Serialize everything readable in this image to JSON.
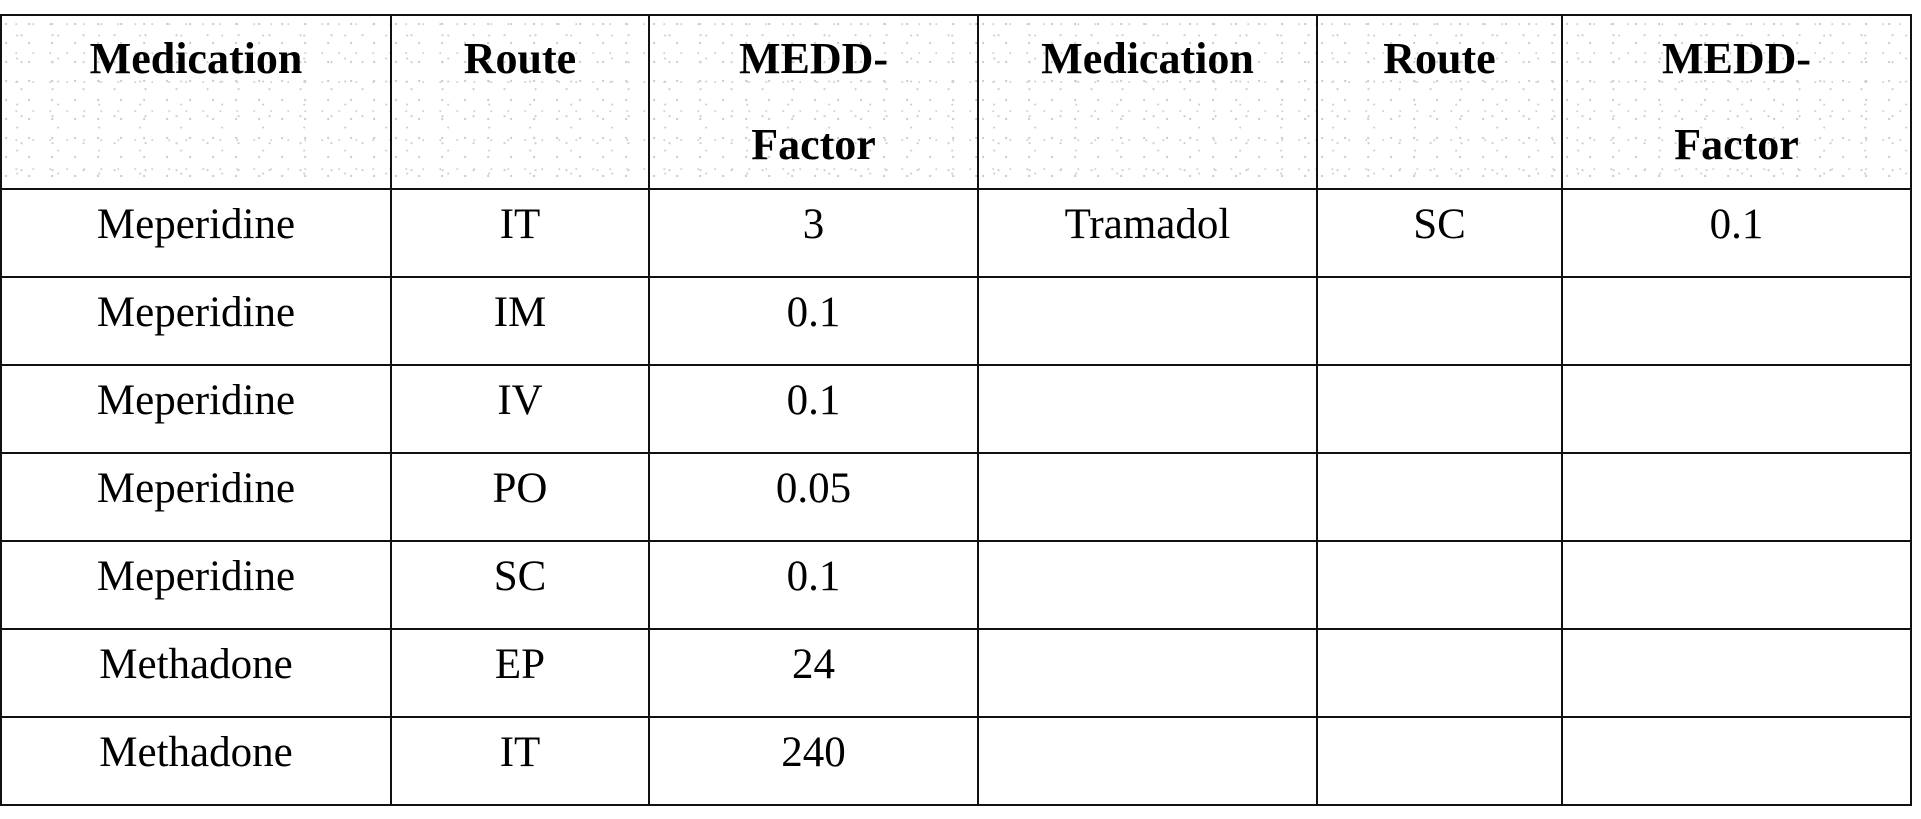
{
  "table": {
    "headers": [
      {
        "line1": "Medication",
        "line2": ""
      },
      {
        "line1": "Route",
        "line2": ""
      },
      {
        "line1": "MEDD-",
        "line2": "Factor"
      },
      {
        "line1": "Medication",
        "line2": ""
      },
      {
        "line1": "Route",
        "line2": ""
      },
      {
        "line1": "MEDD-",
        "line2": "Factor"
      }
    ],
    "rows": [
      [
        "Meperidine",
        "IT",
        "3",
        "Tramadol",
        "SC",
        "0.1"
      ],
      [
        "Meperidine",
        "IM",
        "0.1",
        "",
        "",
        ""
      ],
      [
        "Meperidine",
        "IV",
        "0.1",
        "",
        "",
        ""
      ],
      [
        "Meperidine",
        "PO",
        "0.05",
        "",
        "",
        ""
      ],
      [
        "Meperidine",
        "SC",
        "0.1",
        "",
        "",
        ""
      ],
      [
        "Methadone",
        "EP",
        "24",
        "",
        "",
        ""
      ],
      [
        "Methadone",
        "IT",
        "240",
        "",
        "",
        ""
      ]
    ]
  }
}
